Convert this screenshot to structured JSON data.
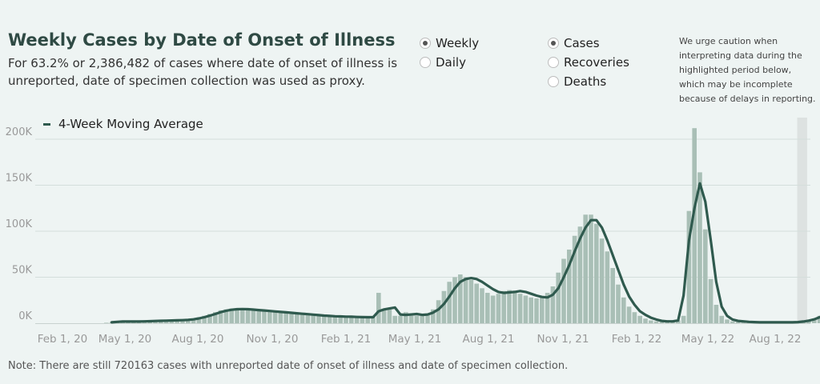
{
  "header": {
    "title": "Weekly Cases by Date of Onset of Illness",
    "subtitle": "For 63.2% or 2,386,482 of cases where date of onset of illness is unreported, date of specimen collection was used as proxy."
  },
  "period_toggle": {
    "options": [
      {
        "label": "Weekly",
        "selected": true
      },
      {
        "label": "Daily",
        "selected": false
      }
    ]
  },
  "metric_toggle": {
    "options": [
      {
        "label": "Cases",
        "selected": true
      },
      {
        "label": "Recoveries",
        "selected": false
      },
      {
        "label": "Deaths",
        "selected": false
      }
    ]
  },
  "caution_text": "We urge caution when interpreting data during the highlighted period below, which may be incomplete because of delays in reporting.",
  "note": "Note: There are still 720163 cases with unreported date of onset of illness and date of specimen collection.",
  "colors": {
    "bar": "#a9bfb6",
    "line": "#2f5a4e",
    "highlight": "#dde2e1",
    "grid": "#d4dedb"
  },
  "chart_data": {
    "type": "bar",
    "x_start": "2020-02-01",
    "interval": "weekly",
    "x_ticks": [
      "Feb 1, 20",
      "May 1, 20",
      "Aug 1, 20",
      "Nov 1, 20",
      "Feb 1, 21",
      "May 1, 21",
      "Aug 1, 21",
      "Nov 1, 21",
      "Feb 1, 22",
      "May 1, 22",
      "Aug 1, 22"
    ],
    "y_ticks": [
      "0K",
      "50K",
      "100K",
      "150K",
      "200K"
    ],
    "ylim": [
      0,
      230000
    ],
    "grid": true,
    "legend": {
      "label": "4-Week Moving Average",
      "position": "top-left"
    },
    "highlight_period": [
      "2022-07-25",
      "2022-08-01"
    ],
    "series": [
      {
        "type": "bar",
        "values": [
          0,
          0,
          500,
          1500,
          2000,
          2000,
          2000,
          2000,
          2000,
          2500,
          2500,
          2500,
          3000,
          3000,
          3000,
          3000,
          3500,
          4000,
          5000,
          6000,
          8000,
          10000,
          12000,
          14000,
          15000,
          16000,
          16000,
          16000,
          15500,
          15000,
          14500,
          14000,
          13500,
          13000,
          12500,
          12000,
          11500,
          11000,
          10500,
          10000,
          9500,
          9000,
          8500,
          8000,
          7500,
          7500,
          7000,
          7000,
          7000,
          6500,
          6500,
          6500,
          33000,
          15000,
          15000,
          8000,
          8000,
          12000,
          8000,
          8000,
          8000,
          9000,
          15000,
          25000,
          35000,
          45000,
          50000,
          53000,
          50000,
          47000,
          43000,
          38000,
          33000,
          30000,
          32000,
          35000,
          36000,
          34000,
          32000,
          30000,
          28000,
          27000,
          28000,
          33000,
          40000,
          55000,
          70000,
          80000,
          95000,
          105000,
          118000,
          118000,
          108000,
          92000,
          78000,
          60000,
          42000,
          28000,
          18000,
          12000,
          8000,
          5000,
          3000,
          2000,
          2000,
          2000,
          2000,
          3000,
          8000,
          122000,
          212000,
          164000,
          102000,
          48000,
          20000,
          8000,
          4000,
          2000,
          1500,
          1000,
          1000,
          1000,
          1000,
          1000,
          1000,
          1000,
          1000,
          1000,
          1000,
          1000,
          2000,
          3000,
          5000,
          8000,
          12000,
          17000,
          20000,
          3000
        ]
      },
      {
        "type": "line",
        "name": "4-Week Moving Average",
        "values": [
          null,
          null,
          null,
          1000,
          1500,
          1800,
          1800,
          1800,
          1800,
          2000,
          2200,
          2400,
          2600,
          2800,
          3000,
          3100,
          3300,
          3600,
          4200,
          5200,
          6500,
          8200,
          10000,
          12000,
          13600,
          14600,
          15200,
          15400,
          15200,
          14800,
          14300,
          13800,
          13300,
          12800,
          12300,
          11800,
          11300,
          10800,
          10300,
          9800,
          9300,
          8800,
          8300,
          7900,
          7600,
          7400,
          7100,
          7000,
          6800,
          6600,
          6500,
          6500,
          13000,
          15000,
          16000,
          17000,
          9500,
          9000,
          9500,
          10000,
          9000,
          9500,
          11500,
          15000,
          21000,
          29000,
          38000,
          45000,
          48000,
          49000,
          48000,
          45000,
          41000,
          37000,
          34000,
          33000,
          33500,
          34000,
          35000,
          34000,
          32000,
          30000,
          28500,
          28000,
          31000,
          38000,
          50000,
          63000,
          78000,
          92000,
          104000,
          112000,
          112000,
          104000,
          90000,
          74000,
          58000,
          42000,
          29000,
          20000,
          13000,
          9000,
          6000,
          4000,
          2500,
          2000,
          2000,
          3000,
          30000,
          90000,
          125000,
          152000,
          132000,
          90000,
          45000,
          18000,
          8000,
          4000,
          2500,
          2000,
          1500,
          1200,
          1000,
          1000,
          1000,
          1000,
          1000,
          1000,
          1000,
          1200,
          1800,
          2800,
          4200,
          6500,
          9500,
          12000,
          null
        ]
      }
    ]
  }
}
